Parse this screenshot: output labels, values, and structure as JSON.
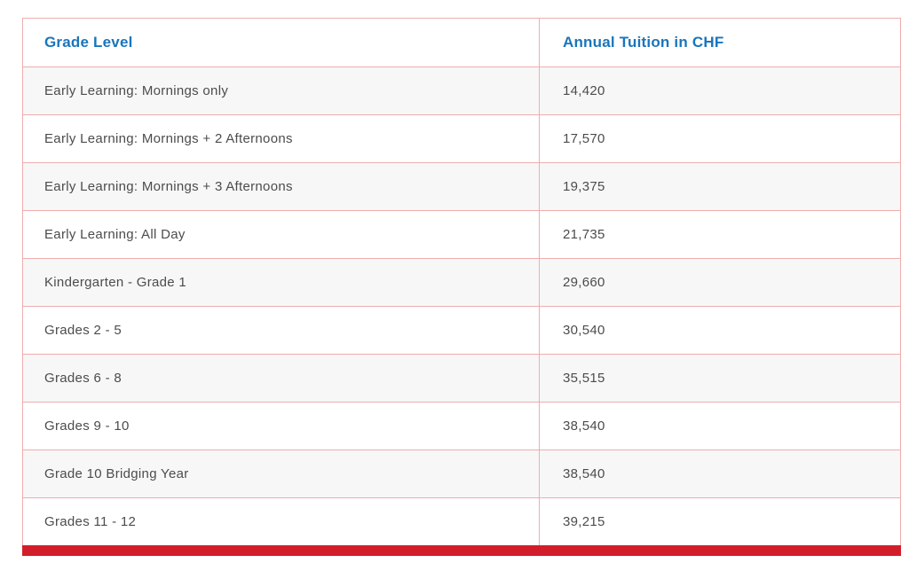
{
  "page": {
    "background": "#ffffff"
  },
  "table": {
    "columns": [
      {
        "label": "Grade Level"
      },
      {
        "label": "Annual Tuition in CHF"
      }
    ],
    "rows": [
      {
        "grade": "Early Learning: Mornings only",
        "tuition": "14,420"
      },
      {
        "grade": "Early Learning: Mornings + 2 Afternoons",
        "tuition": "17,570"
      },
      {
        "grade": "Early Learning: Mornings + 3 Afternoons",
        "tuition": "19,375"
      },
      {
        "grade": "Early Learning: All Day",
        "tuition": "21,735"
      },
      {
        "grade": "Kindergarten - Grade 1",
        "tuition": "29,660"
      },
      {
        "grade": "Grades 2 - 5",
        "tuition": "30,540"
      },
      {
        "grade": "Grades 6 - 8",
        "tuition": "35,515"
      },
      {
        "grade": "Grades 9 - 10",
        "tuition": "38,540"
      },
      {
        "grade": "Grade 10 Bridging Year",
        "tuition": "38,540"
      },
      {
        "grade": "Grades 11 - 12",
        "tuition": "39,215"
      }
    ],
    "colors": {
      "header_text": "#1a75bb",
      "body_text": "#4c4c4c",
      "border": "#efadad",
      "row_alt_background": "#f7f7f7",
      "row_background": "#ffffff",
      "accent_bar": "#d21e2b"
    }
  },
  "chart_data": {
    "type": "table",
    "columns": [
      "Grade Level",
      "Annual Tuition in CHF"
    ],
    "rows": [
      [
        "Early Learning: Mornings only",
        14420
      ],
      [
        "Early Learning: Mornings + 2 Afternoons",
        17570
      ],
      [
        "Early Learning: Mornings + 3 Afternoons",
        19375
      ],
      [
        "Early Learning: All Day",
        21735
      ],
      [
        "Kindergarten - Grade 1",
        29660
      ],
      [
        "Grades 2 - 5",
        30540
      ],
      [
        "Grades 6 - 8",
        35515
      ],
      [
        "Grades 9 - 10",
        38540
      ],
      [
        "Grade 10 Bridging Year",
        38540
      ],
      [
        "Grades 11 - 12",
        39215
      ]
    ]
  }
}
